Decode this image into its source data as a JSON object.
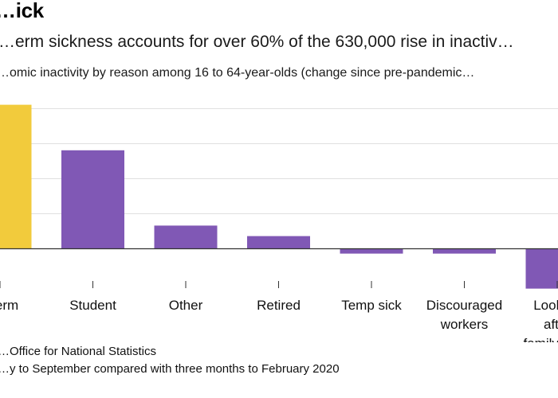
{
  "title": "…ick",
  "subtitle": "…erm sickness accounts for over 60% of the 630,000 rise in inactiv…",
  "caption": "…omic inactivity by reason among 16 to 64-year-olds (change since pre-pandemic…",
  "source": "…Office for National Statistics",
  "note": "…y to September compared with three months to February 2020",
  "colors": {
    "highlight": "#f2cb3c",
    "bar": "#8058b5",
    "grid": "#e0e0e0",
    "axis": "#333333"
  },
  "chart_data": {
    "type": "bar",
    "categories": [
      [
        "…erm"
      ],
      [
        "Student"
      ],
      [
        "Other"
      ],
      [
        "Retired"
      ],
      [
        "Temp sick"
      ],
      [
        "Discouraged",
        "workers"
      ],
      [
        "Looking",
        "after",
        "family/ho…"
      ]
    ],
    "values": [
      410,
      280,
      65,
      35,
      -15,
      -15,
      -115
    ],
    "highlight_index": 0,
    "ylim": [
      -160,
      400
    ],
    "gridlines": [
      100,
      200,
      300,
      400
    ],
    "grid": true
  }
}
